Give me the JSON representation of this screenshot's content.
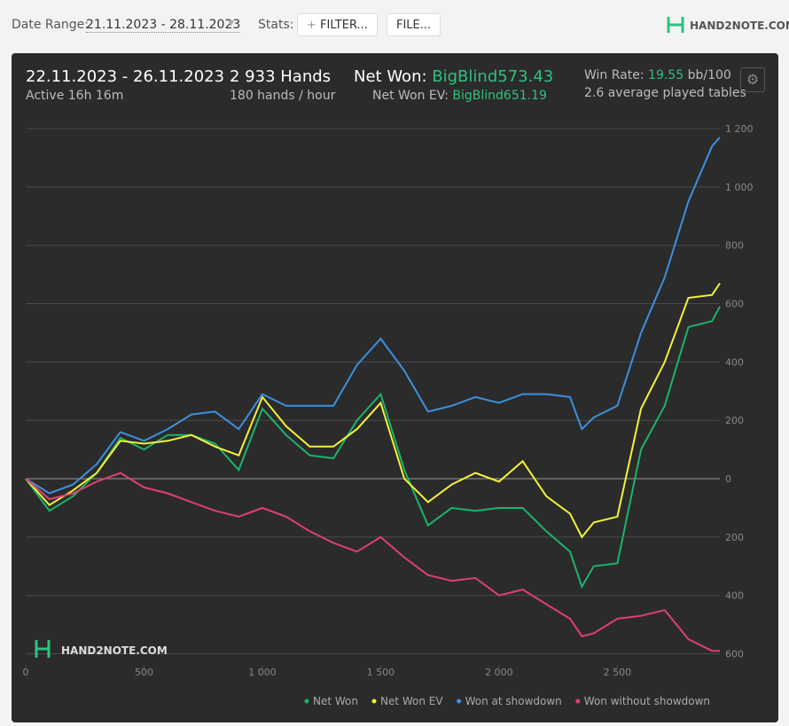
{
  "toolbar": {
    "date_label": "Date Range:",
    "date_value": "21.11.2023 - 28.11.2023",
    "stats_label": "Stats:",
    "filter": "FILTER...",
    "file": "FILE...",
    "logo": "HAND2NOTE.COM"
  },
  "summary": {
    "period": "22.11.2023 - 26.11.2023",
    "active": "Active 16h 16m",
    "hands": "2 933 Hands",
    "rate": "180 hands / hour",
    "net_won_label": "Net Won:",
    "net_won": "BigBlind573.43",
    "ev_label": "Net Won  EV:",
    "ev": "BigBlind651.19",
    "win_rate_label": "Win Rate:",
    "win_rate": "19.55",
    "win_rate_unit": "bb/100",
    "tables": "2.6 average played tables"
  },
  "chart_data": {
    "type": "line",
    "watermark": "HAND2NOTE.COM",
    "x": [
      0,
      100,
      200,
      300,
      400,
      500,
      600,
      700,
      800,
      900,
      1000,
      1100,
      1200,
      1300,
      1400,
      1500,
      1600,
      1700,
      1800,
      1900,
      2000,
      2100,
      2200,
      2300,
      2350,
      2400,
      2500,
      2600,
      2700,
      2800,
      2900,
      2933
    ],
    "series": [
      {
        "name": "Net Won",
        "color": "#1db36b",
        "values": [
          0,
          -110,
          -60,
          20,
          140,
          100,
          150,
          150,
          120,
          30,
          240,
          150,
          80,
          70,
          200,
          290,
          30,
          -160,
          -100,
          -110,
          -100,
          -100,
          -180,
          -250,
          -370,
          -300,
          -290,
          100,
          250,
          520,
          540,
          590
        ]
      },
      {
        "name": "Net Won  EV",
        "color": "#f2f23a",
        "values": [
          0,
          -90,
          -40,
          20,
          130,
          120,
          130,
          150,
          110,
          80,
          280,
          180,
          110,
          110,
          170,
          260,
          0,
          -80,
          -20,
          20,
          -10,
          60,
          -60,
          -120,
          -200,
          -150,
          -130,
          240,
          400,
          620,
          630,
          670
        ]
      },
      {
        "name": "Won at showdown",
        "color": "#3d8fe0",
        "values": [
          0,
          -50,
          -20,
          50,
          160,
          130,
          170,
          220,
          230,
          170,
          290,
          250,
          250,
          250,
          390,
          480,
          370,
          230,
          250,
          280,
          260,
          290,
          290,
          280,
          170,
          210,
          250,
          500,
          690,
          950,
          1140,
          1170
        ]
      },
      {
        "name": "Won without showdown",
        "color": "#e0406e",
        "values": [
          0,
          -70,
          -50,
          -10,
          20,
          -30,
          -50,
          -80,
          -110,
          -130,
          -100,
          -130,
          -180,
          -220,
          -250,
          -200,
          -270,
          -330,
          -350,
          -340,
          -400,
          -380,
          -430,
          -480,
          -540,
          -530,
          -480,
          -470,
          -450,
          -550,
          -590,
          -590
        ]
      }
    ],
    "xlim": [
      0,
      2933
    ],
    "xticks": [
      0,
      500,
      {
        "value": 1000,
        "label": "1 000"
      },
      {
        "value": 1500,
        "label": "1 500"
      },
      {
        "value": 2000,
        "label": "2 000"
      },
      {
        "value": 2500,
        "label": "2 500"
      }
    ],
    "ylim": [
      -640,
      1250
    ],
    "yticks": [
      {
        "value": -600,
        "label": "600"
      },
      {
        "value": -400,
        "label": "400"
      },
      {
        "value": -200,
        "label": "200"
      },
      0,
      200,
      400,
      600,
      800,
      {
        "value": 1000,
        "label": "1 000"
      },
      {
        "value": 1200,
        "label": "1 200"
      }
    ],
    "grid": true
  }
}
